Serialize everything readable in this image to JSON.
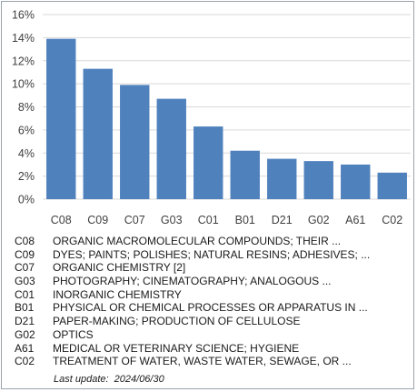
{
  "chart_data": {
    "type": "bar",
    "categories": [
      "C08",
      "C09",
      "C07",
      "G03",
      "C01",
      "B01",
      "D21",
      "G02",
      "A61",
      "C02"
    ],
    "values": [
      13.9,
      11.3,
      9.9,
      8.7,
      6.3,
      4.2,
      3.5,
      3.3,
      3.0,
      2.3
    ],
    "ylim": [
      0,
      16
    ],
    "yticks": [
      "0%",
      "2%",
      "4%",
      "6%",
      "8%",
      "10%",
      "12%",
      "14%",
      "16%"
    ],
    "grid": true,
    "bar_color": "#4f81bd",
    "grid_color": "#d9d9d9"
  },
  "legend": [
    {
      "code": "C08",
      "desc": "ORGANIC MACROMOLECULAR COMPOUNDS; THEIR ..."
    },
    {
      "code": "C09",
      "desc": "DYES; PAINTS; POLISHES; NATURAL RESINS; ADHESIVES; ..."
    },
    {
      "code": "C07",
      "desc": "ORGANIC CHEMISTRY [2]"
    },
    {
      "code": "G03",
      "desc": "PHOTOGRAPHY; CINEMATOGRAPHY; ANALOGOUS ..."
    },
    {
      "code": "C01",
      "desc": "INORGANIC CHEMISTRY"
    },
    {
      "code": "B01",
      "desc": "PHYSICAL OR CHEMICAL PROCESSES OR APPARATUS IN ..."
    },
    {
      "code": "D21",
      "desc": "PAPER-MAKING; PRODUCTION OF CELLULOSE"
    },
    {
      "code": "G02",
      "desc": "OPTICS"
    },
    {
      "code": "A61",
      "desc": "MEDICAL OR VETERINARY SCIENCE; HYGIENE"
    },
    {
      "code": "C02",
      "desc": "TREATMENT OF WATER, WASTE WATER, SEWAGE, OR ..."
    }
  ],
  "footer": {
    "last_update": "Last update:  2024/06/30"
  }
}
